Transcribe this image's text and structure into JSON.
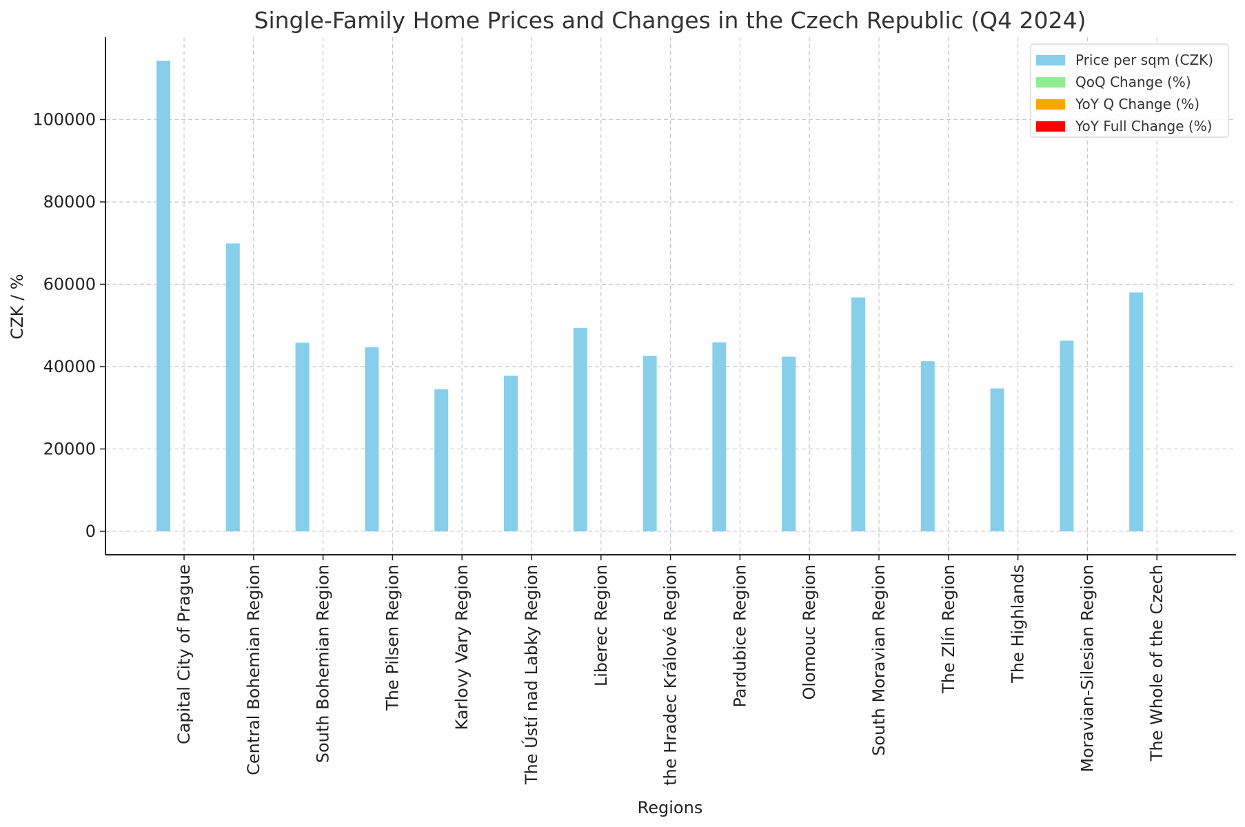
{
  "chart_data": {
    "type": "bar",
    "title": "Single-Family Home Prices and Changes in the Czech Republic (Q4 2024)",
    "xlabel": "Regions",
    "ylabel": "CZK / %",
    "ylim": [
      -5700,
      120000
    ],
    "yticks": [
      0,
      20000,
      40000,
      60000,
      80000,
      100000
    ],
    "grid": true,
    "legend_position": "top-right",
    "categories": [
      "Capital City of Prague",
      "Central Bohemian Region",
      "South Bohemian Region",
      "The Pilsen Region",
      "Karlovy Vary Region",
      "The Ústí nad Labky Region",
      "Liberec Region",
      "the Hradec Králové Region",
      "Pardubice Region",
      "Olomouc Region",
      "South Moravian Region",
      "The Zlín Region",
      "The Highlands",
      "Moravian-Silesian Region",
      "The Whole of the Czech"
    ],
    "series": [
      {
        "name": "Price per sqm (CZK)",
        "color": "#87ceeb",
        "values": [
          114300,
          69900,
          45800,
          44700,
          34500,
          37800,
          49400,
          42600,
          45900,
          42400,
          56800,
          41300,
          34700,
          46300,
          58000
        ]
      },
      {
        "name": "QoQ Change (%)",
        "color": "#90ee90",
        "values": [
          null,
          null,
          null,
          null,
          null,
          null,
          null,
          null,
          null,
          null,
          null,
          null,
          null,
          null,
          null
        ]
      },
      {
        "name": "YoY Q Change (%)",
        "color": "#ffa500",
        "values": [
          null,
          null,
          null,
          null,
          null,
          null,
          null,
          null,
          null,
          null,
          null,
          null,
          null,
          null,
          null
        ]
      },
      {
        "name": "YoY Full Change (%)",
        "color": "#ff0000",
        "values": [
          null,
          null,
          null,
          null,
          null,
          null,
          null,
          null,
          null,
          null,
          null,
          null,
          null,
          null,
          null
        ]
      }
    ]
  }
}
